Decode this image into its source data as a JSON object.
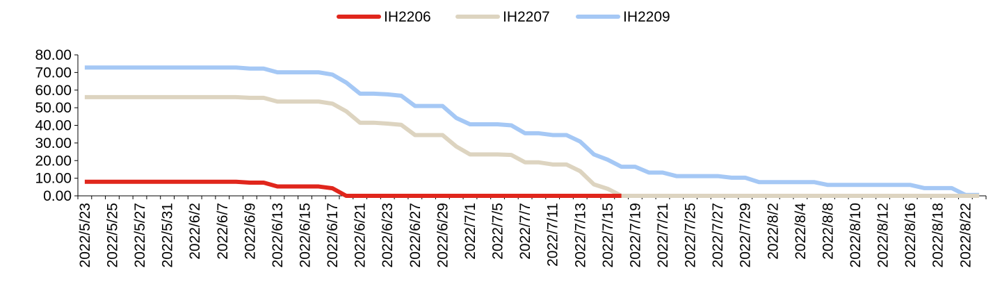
{
  "chart_data": {
    "type": "line",
    "title": "",
    "xlabel": "",
    "ylabel": "",
    "ylim": [
      0,
      80
    ],
    "yticks": [
      "0.00",
      "10.00",
      "20.00",
      "30.00",
      "40.00",
      "50.00",
      "60.00",
      "70.00",
      "80.00"
    ],
    "grid": false,
    "legend_position": "top-center",
    "x": [
      "2022/5/23",
      "2022/5/24",
      "2022/5/25",
      "2022/5/26",
      "2022/5/27",
      "2022/5/30",
      "2022/5/31",
      "2022/6/1",
      "2022/6/2",
      "2022/6/6",
      "2022/6/7",
      "2022/6/8",
      "2022/6/9",
      "2022/6/10",
      "2022/6/13",
      "2022/6/14",
      "2022/6/15",
      "2022/6/16",
      "2022/6/17",
      "2022/6/20",
      "2022/6/21",
      "2022/6/22",
      "2022/6/23",
      "2022/6/24",
      "2022/6/27",
      "2022/6/28",
      "2022/6/29",
      "2022/6/30",
      "2022/7/1",
      "2022/7/4",
      "2022/7/5",
      "2022/7/6",
      "2022/7/7",
      "2022/7/8",
      "2022/7/11",
      "2022/7/12",
      "2022/7/13",
      "2022/7/14",
      "2022/7/15",
      "2022/7/18",
      "2022/7/19",
      "2022/7/20",
      "2022/7/21",
      "2022/7/22",
      "2022/7/25",
      "2022/7/26",
      "2022/7/27",
      "2022/7/28",
      "2022/7/29",
      "2022/8/1",
      "2022/8/2",
      "2022/8/3",
      "2022/8/4",
      "2022/8/5",
      "2022/8/8",
      "2022/8/9",
      "2022/8/10",
      "2022/8/11",
      "2022/8/12",
      "2022/8/15",
      "2022/8/16",
      "2022/8/17",
      "2022/8/18",
      "2022/8/19",
      "2022/8/22",
      "2022/8/23"
    ],
    "x_tick_labels": [
      "2022/5/23",
      "2022/5/25",
      "2022/5/27",
      "2022/5/31",
      "2022/6/2",
      "2022/6/7",
      "2022/6/9",
      "2022/6/13",
      "2022/6/15",
      "2022/6/17",
      "2022/6/21",
      "2022/6/23",
      "2022/6/27",
      "2022/6/29",
      "2022/7/1",
      "2022/7/5",
      "2022/7/7",
      "2022/7/11",
      "2022/7/13",
      "2022/7/15",
      "2022/7/19",
      "2022/7/21",
      "2022/7/25",
      "2022/7/27",
      "2022/7/29",
      "2022/8/2",
      "2022/8/4",
      "2022/8/8",
      "2022/8/10",
      "2022/8/12",
      "2022/8/16",
      "2022/8/18",
      "2022/8/22"
    ],
    "series": [
      {
        "name": "IH2206",
        "color": "#e0261c",
        "values": [
          8,
          8,
          8,
          8,
          8,
          8,
          8,
          8,
          8,
          8,
          8,
          8,
          7.5,
          7.5,
          5.3,
          5.3,
          5.3,
          5.3,
          4.3,
          0,
          0,
          0,
          0,
          0,
          0,
          0,
          0,
          0,
          0,
          0,
          0,
          0,
          0,
          0,
          0,
          0,
          0,
          0,
          0,
          0,
          null,
          null,
          null,
          null,
          null,
          null,
          null,
          null,
          null,
          null,
          null,
          null,
          null,
          null,
          null,
          null,
          null,
          null,
          null,
          null,
          null,
          null,
          null,
          null,
          null,
          null
        ]
      },
      {
        "name": "IH2207",
        "color": "#ddd4c0",
        "values": [
          56,
          56,
          56,
          56,
          56,
          56,
          56,
          56,
          56,
          56,
          56,
          56,
          55.6,
          55.6,
          53.5,
          53.5,
          53.5,
          53.5,
          52.3,
          48,
          41.5,
          41.5,
          41,
          40.3,
          34.5,
          34.5,
          34.5,
          28,
          23.5,
          23.5,
          23.5,
          23.2,
          19,
          19,
          17.8,
          17.8,
          14,
          6.5,
          4,
          0,
          0,
          0,
          0,
          0,
          0,
          0,
          0,
          0,
          0,
          0,
          0,
          0,
          0,
          0,
          0,
          0,
          0,
          0,
          0,
          0,
          0,
          0,
          0,
          0,
          0,
          0
        ]
      },
      {
        "name": "IH2209",
        "color": "#a5c8f5",
        "values": [
          72.8,
          72.8,
          72.8,
          72.8,
          72.8,
          72.8,
          72.8,
          72.8,
          72.8,
          72.8,
          72.8,
          72.8,
          72.2,
          72.2,
          70.1,
          70.1,
          70.1,
          70.1,
          68.8,
          64.3,
          58,
          58,
          57.6,
          56.8,
          51,
          51,
          51,
          44.2,
          40.6,
          40.6,
          40.6,
          40,
          35.5,
          35.5,
          34.5,
          34.5,
          30.8,
          23.5,
          20.5,
          16.5,
          16.5,
          13.2,
          13.2,
          11.2,
          11.2,
          11.2,
          11.2,
          10.3,
          10.3,
          7.8,
          7.8,
          7.8,
          7.8,
          7.8,
          6.2,
          6.2,
          6.2,
          6.2,
          6.2,
          6.2,
          6.2,
          4.4,
          4.4,
          4.4,
          0.5,
          0.5
        ]
      }
    ]
  }
}
